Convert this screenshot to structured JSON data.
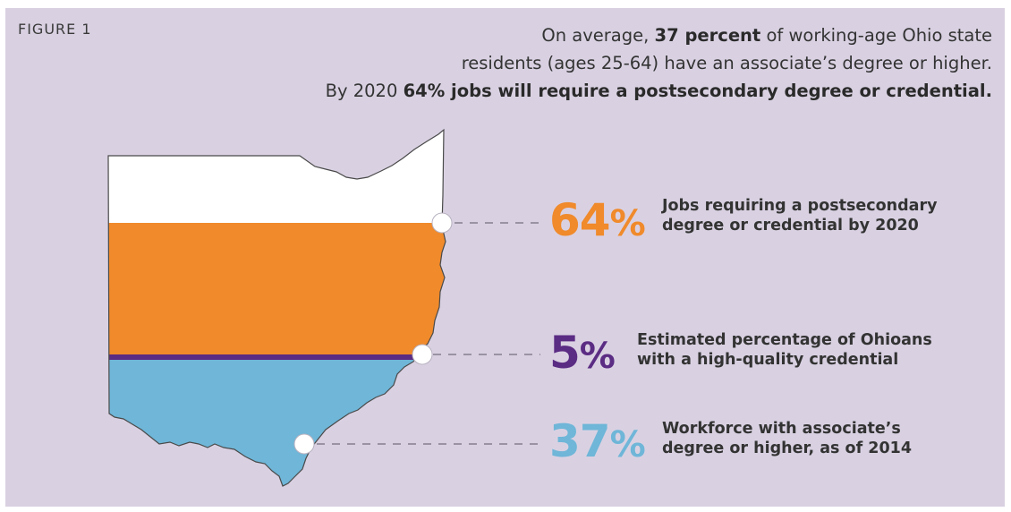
{
  "figure_label": "FIGURE 1",
  "headline": {
    "line1_pre": "On average, ",
    "line1_bold": "37 percent",
    "line1_post": " of working-age Ohio state",
    "line2": "residents (ages 25-64) have an associate’s degree or higher.",
    "line3_pre": "By 2020 ",
    "line3_bold": "64% jobs will require a postsecondary degree or credential."
  },
  "stats": [
    {
      "value": "64",
      "unit": "%",
      "color": "#f08a2b",
      "line1": "Jobs requiring a postsecondary",
      "line2": "degree or credential by 2020"
    },
    {
      "value": "5",
      "unit": "%",
      "color": "#5b2c83",
      "line1": "Estimated percentage of Ohioans",
      "line2": "with a high-quality credential"
    },
    {
      "value": "37",
      "unit": "%",
      "color": "#6fb6d8",
      "line1": "Workforce with associate’s",
      "line2": "degree or higher, as of 2014"
    }
  ],
  "colors": {
    "background": "#d9d1e2",
    "white_band": "#ffffff",
    "orange_band": "#f08a2b",
    "purple_band": "#5b2c83",
    "blue_band": "#6fb6d8",
    "leader": "#9a93a3"
  }
}
